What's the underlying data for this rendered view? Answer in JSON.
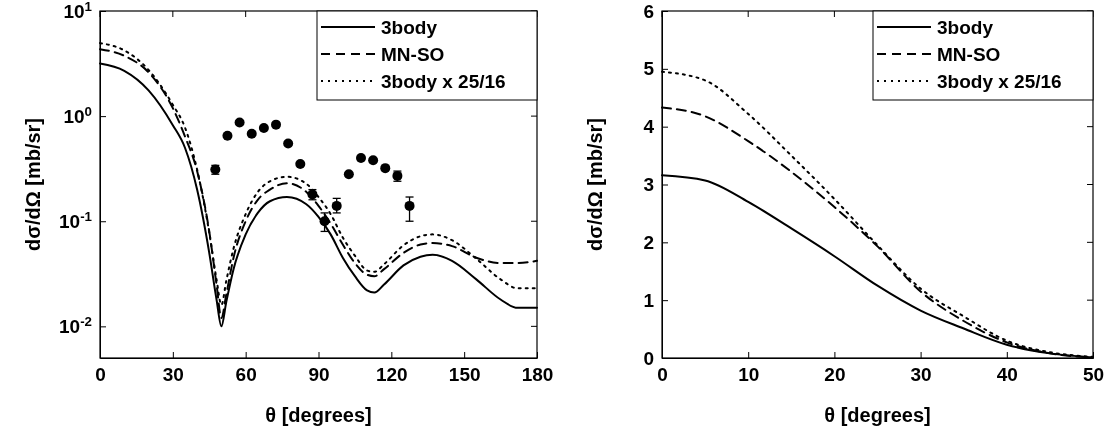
{
  "chart_data": [
    {
      "type": "line",
      "xlabel": "θ [degrees]",
      "ylabel": "dσ/dΩ [mb/sr]",
      "log": "y",
      "legend": "top right",
      "xlim": [
        0,
        180
      ],
      "xticks": [
        0,
        30,
        60,
        90,
        120,
        150,
        180
      ],
      "ylim": [
        0.005,
        10
      ],
      "yticks": [
        {
          "value": 0.01,
          "label": "10$^{-2}$"
        },
        {
          "value": 0.1,
          "label": "10$^{-1}$"
        },
        {
          "value": 1,
          "label": "10$^{0}$"
        },
        {
          "value": 10,
          "label": "10$^{1}$"
        }
      ],
      "series": [
        {
          "name": "3body",
          "color": "#000000",
          "line_style": "solid",
          "x": [
            0,
            10,
            20,
            30,
            35,
            40,
            45,
            48,
            50,
            52,
            55,
            60,
            65,
            70,
            77,
            85,
            90,
            95,
            100,
            105,
            110,
            113,
            117,
            125,
            132,
            137,
            145,
            155,
            165,
            172,
            180
          ],
          "values": [
            3.17,
            2.7,
            1.76,
            0.82,
            0.5,
            0.2,
            0.05,
            0.018,
            0.01,
            0.017,
            0.035,
            0.075,
            0.12,
            0.155,
            0.17,
            0.145,
            0.11,
            0.075,
            0.045,
            0.03,
            0.022,
            0.021,
            0.025,
            0.038,
            0.046,
            0.048,
            0.042,
            0.028,
            0.018,
            0.015,
            0.015
          ]
        },
        {
          "name": "MN-SO",
          "color": "#000000",
          "line_style": "dashed",
          "x": [
            0,
            10,
            20,
            30,
            35,
            40,
            45,
            48,
            50,
            52,
            55,
            60,
            65,
            70,
            77,
            85,
            90,
            95,
            100,
            105,
            110,
            113,
            117,
            125,
            132,
            137,
            145,
            155,
            165,
            172,
            180
          ],
          "values": [
            4.33,
            3.75,
            2.61,
            1.19,
            0.64,
            0.3,
            0.08,
            0.025,
            0.012,
            0.02,
            0.045,
            0.1,
            0.16,
            0.2,
            0.23,
            0.19,
            0.14,
            0.095,
            0.06,
            0.04,
            0.031,
            0.03,
            0.035,
            0.05,
            0.06,
            0.062,
            0.058,
            0.045,
            0.04,
            0.04,
            0.042
          ]
        },
        {
          "name": "3body x 25/16",
          "color": "#000000",
          "line_style": "dotted",
          "x": [
            0,
            10,
            20,
            30,
            35,
            40,
            45,
            48,
            50,
            52,
            55,
            60,
            65,
            70,
            77,
            85,
            90,
            95,
            100,
            105,
            110,
            113,
            117,
            125,
            132,
            137,
            145,
            155,
            165,
            172,
            180
          ],
          "values": [
            4.95,
            4.22,
            2.75,
            1.28,
            0.78,
            0.31,
            0.078,
            0.028,
            0.016,
            0.027,
            0.055,
            0.117,
            0.19,
            0.24,
            0.265,
            0.227,
            0.17,
            0.117,
            0.07,
            0.047,
            0.034,
            0.033,
            0.039,
            0.059,
            0.072,
            0.075,
            0.066,
            0.044,
            0.028,
            0.023,
            0.023
          ]
        },
        {
          "type": "scatter",
          "color": "#000000",
          "marker": "circle",
          "x": [
            47.5,
            52.5,
            57.5,
            62.5,
            67.5,
            72.5,
            77.5,
            82.5,
            87.5,
            92.5,
            97.5,
            102.5,
            107.5,
            112.5,
            117.5,
            122.5,
            127.5
          ],
          "values": [
            0.31,
            0.65,
            0.87,
            0.68,
            0.77,
            0.83,
            0.55,
            0.35,
            0.18,
            0.1,
            0.14,
            0.28,
            0.4,
            0.38,
            0.32,
            0.27,
            0.14
          ],
          "errors": [
            0.03,
            null,
            null,
            null,
            null,
            null,
            null,
            null,
            0.02,
            [
              0.08,
              0.12
            ],
            [
              0.12,
              0.165
            ],
            null,
            null,
            null,
            null,
            [
              0.24,
              0.3
            ],
            [
              0.1,
              0.17
            ]
          ]
        }
      ]
    },
    {
      "type": "line",
      "xlabel": "θ [degrees]",
      "ylabel": "dσ/dΩ [mb/sr]",
      "legend": "top right",
      "xlim": [
        0,
        50
      ],
      "xticks": [
        0,
        10,
        20,
        30,
        40,
        50
      ],
      "ylim": [
        0,
        6
      ],
      "yticks": [
        0,
        1,
        2,
        3,
        4,
        5,
        6
      ],
      "series": [
        {
          "name": "3body",
          "color": "#000000",
          "line_style": "solid",
          "x": [
            0,
            5,
            10,
            15,
            20,
            25,
            30,
            35,
            40,
            45,
            50
          ],
          "values": [
            3.16,
            3.07,
            2.7,
            2.24,
            1.76,
            1.25,
            0.82,
            0.51,
            0.23,
            0.08,
            0.01
          ]
        },
        {
          "name": "MN-SO",
          "color": "#000000",
          "line_style": "dashed",
          "x": [
            0,
            5,
            10,
            15,
            20,
            25,
            30,
            35,
            40,
            45,
            50
          ],
          "values": [
            4.33,
            4.18,
            3.75,
            3.22,
            2.61,
            1.93,
            1.15,
            0.64,
            0.27,
            0.08,
            0.01
          ]
        },
        {
          "name": "3body x 25/16",
          "color": "#000000",
          "line_style": "dotted",
          "x": [
            0,
            5,
            10,
            15,
            20,
            25,
            30,
            35,
            40,
            45,
            50
          ],
          "values": [
            4.95,
            4.8,
            4.22,
            3.5,
            2.75,
            1.95,
            1.2,
            0.72,
            0.3,
            0.1,
            0.02
          ]
        }
      ]
    }
  ]
}
